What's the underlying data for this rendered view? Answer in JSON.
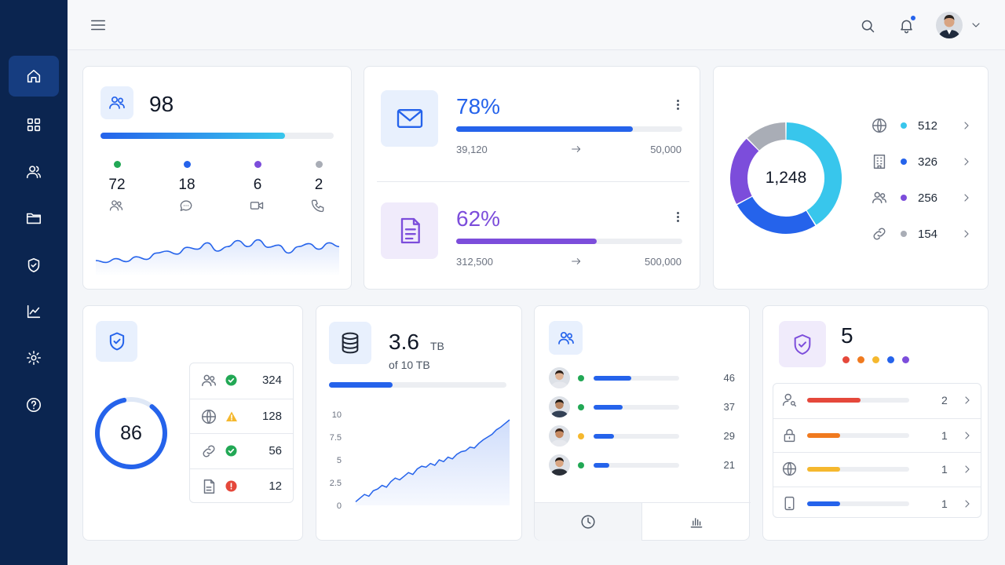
{
  "sidebar": {
    "items": [
      {
        "icon": "home-icon"
      },
      {
        "icon": "grid-icon"
      },
      {
        "icon": "users-icon"
      },
      {
        "icon": "folder-icon"
      },
      {
        "icon": "shield-check-icon"
      },
      {
        "icon": "chart-line-icon"
      },
      {
        "icon": "gear-icon"
      },
      {
        "icon": "help-icon"
      }
    ]
  },
  "colors": {
    "sidebar": "#0b2550",
    "accent": "#2563eb",
    "purple": "#7c4ddb",
    "cyan": "#38c6ec",
    "green": "#22a855",
    "red": "#e5483b",
    "orange": "#f07a1f",
    "yellow": "#f5b82e"
  },
  "users_card": {
    "total": "98",
    "progress": 0.79,
    "stats": [
      {
        "value": "72",
        "color": "#22a855",
        "icon": "users-icon"
      },
      {
        "value": "18",
        "color": "#2563eb",
        "icon": "chat-icon"
      },
      {
        "value": "6",
        "color": "#7c4ddb",
        "icon": "video-icon"
      },
      {
        "value": "2",
        "color": "#a9adb6",
        "icon": "phone-icon"
      }
    ],
    "sparkline": [
      0.25,
      0.2,
      0.3,
      0.22,
      0.35,
      0.28,
      0.45,
      0.5,
      0.42,
      0.6,
      0.55,
      0.72,
      0.5,
      0.62,
      0.78,
      0.62,
      0.8,
      0.6,
      0.66,
      0.45,
      0.62,
      0.7,
      0.55,
      0.72,
      0.62
    ]
  },
  "email_metric": {
    "percent": "78%",
    "progress": 0.78,
    "current": "39,120",
    "target": "50,000"
  },
  "doc_metric": {
    "percent": "62%",
    "progress": 0.62,
    "current": "312,500",
    "target": "500,000"
  },
  "donut": {
    "total": "1,248",
    "items": [
      {
        "value": "512",
        "color": "#38c6ec",
        "icon": "globe-icon"
      },
      {
        "value": "326",
        "color": "#2563eb",
        "icon": "building-icon"
      },
      {
        "value": "256",
        "color": "#7c4ddb",
        "icon": "users-icon"
      },
      {
        "value": "154",
        "color": "#a9adb6",
        "icon": "link-icon"
      }
    ]
  },
  "security_card": {
    "score": "86",
    "progress": 0.86,
    "rows": [
      {
        "icon": "users-icon",
        "status": "ok",
        "value": "324"
      },
      {
        "icon": "globe-icon",
        "status": "warning",
        "value": "128"
      },
      {
        "icon": "link-icon",
        "status": "ok",
        "value": "56"
      },
      {
        "icon": "file-icon",
        "status": "error",
        "value": "12"
      }
    ]
  },
  "storage_card": {
    "value": "3.6",
    "unit": "TB",
    "of_label": "of 10 TB",
    "progress": 0.36,
    "y_ticks": [
      "10",
      "7.5",
      "5",
      "2.5",
      "0"
    ],
    "series": [
      0.4,
      0.8,
      1.2,
      1.0,
      1.6,
      1.8,
      2.2,
      2.0,
      2.6,
      3.0,
      2.8,
      3.2,
      3.6,
      3.4,
      4.0,
      4.3,
      4.2,
      4.6,
      4.4,
      5.0,
      4.8,
      5.3,
      5.1,
      5.6,
      5.9,
      6.0,
      6.4,
      6.3,
      6.8,
      7.2,
      7.5,
      7.8,
      8.3,
      8.6,
      9.0,
      9.4
    ]
  },
  "team_card": {
    "members": [
      {
        "status": "#22a855",
        "progress": 0.44,
        "value": "46"
      },
      {
        "status": "#22a855",
        "progress": 0.34,
        "value": "37"
      },
      {
        "status": "#f5b82e",
        "progress": 0.24,
        "value": "29"
      },
      {
        "status": "#22a855",
        "progress": 0.18,
        "value": "21"
      }
    ],
    "tabs": [
      {
        "icon": "clock-icon"
      },
      {
        "icon": "bar-chart-icon"
      }
    ]
  },
  "alerts_card": {
    "count": "5",
    "dots": [
      "#e5483b",
      "#f07a1f",
      "#f5b82e",
      "#2563eb",
      "#7c4ddb"
    ],
    "rows": [
      {
        "icon": "user-search-icon",
        "color": "#e5483b",
        "progress": 0.52,
        "value": "2"
      },
      {
        "icon": "lock-icon",
        "color": "#f07a1f",
        "progress": 0.32,
        "value": "1"
      },
      {
        "icon": "globe-icon",
        "color": "#f5b82e",
        "progress": 0.32,
        "value": "1"
      },
      {
        "icon": "tablet-icon",
        "color": "#2563eb",
        "progress": 0.32,
        "value": "1"
      }
    ]
  }
}
